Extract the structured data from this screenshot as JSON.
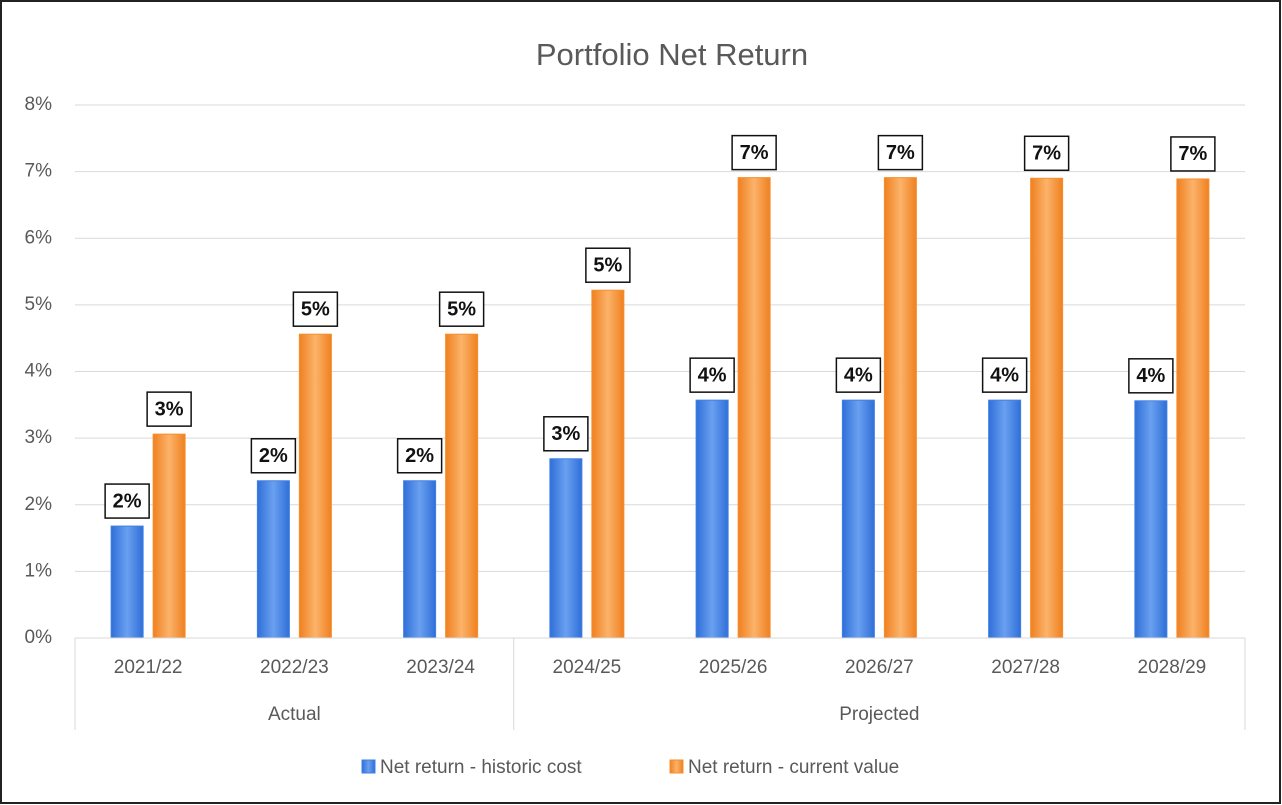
{
  "chart_data": {
    "type": "bar",
    "title": "Portfolio Net Return",
    "categories": [
      "2021/22",
      "2022/23",
      "2023/24",
      "2024/25",
      "2025/26",
      "2026/27",
      "2027/28",
      "2028/29"
    ],
    "category_groups": [
      "Actual",
      "Actual",
      "Actual",
      "Projected",
      "Projected",
      "Projected",
      "Projected",
      "Projected"
    ],
    "series": [
      {
        "name": "Net return - historic cost",
        "color": "#3f7fe6",
        "values": [
          1.68,
          2.36,
          2.36,
          2.69,
          3.57,
          3.57,
          3.57,
          3.56
        ],
        "value_labels": [
          "2%",
          "2%",
          "2%",
          "3%",
          "4%",
          "4%",
          "4%",
          "4%"
        ]
      },
      {
        "name": "Net return - current value",
        "color": "#f58f2c",
        "values": [
          3.06,
          4.56,
          4.56,
          5.22,
          6.91,
          6.91,
          6.9,
          6.89
        ],
        "value_labels": [
          "3%",
          "5%",
          "5%",
          "5%",
          "7%",
          "7%",
          "7%",
          "7%"
        ]
      }
    ],
    "ylim": [
      0,
      8
    ],
    "yticks": [
      {
        "value": 0,
        "label": "0%"
      },
      {
        "value": 1,
        "label": "1%"
      },
      {
        "value": 2,
        "label": "2%"
      },
      {
        "value": 3,
        "label": "3%"
      },
      {
        "value": 4,
        "label": "4%"
      },
      {
        "value": 5,
        "label": "5%"
      },
      {
        "value": 6,
        "label": "6%"
      },
      {
        "value": 7,
        "label": "7%"
      },
      {
        "value": 8,
        "label": "8%"
      }
    ],
    "grid": true,
    "legend": "bottom"
  }
}
